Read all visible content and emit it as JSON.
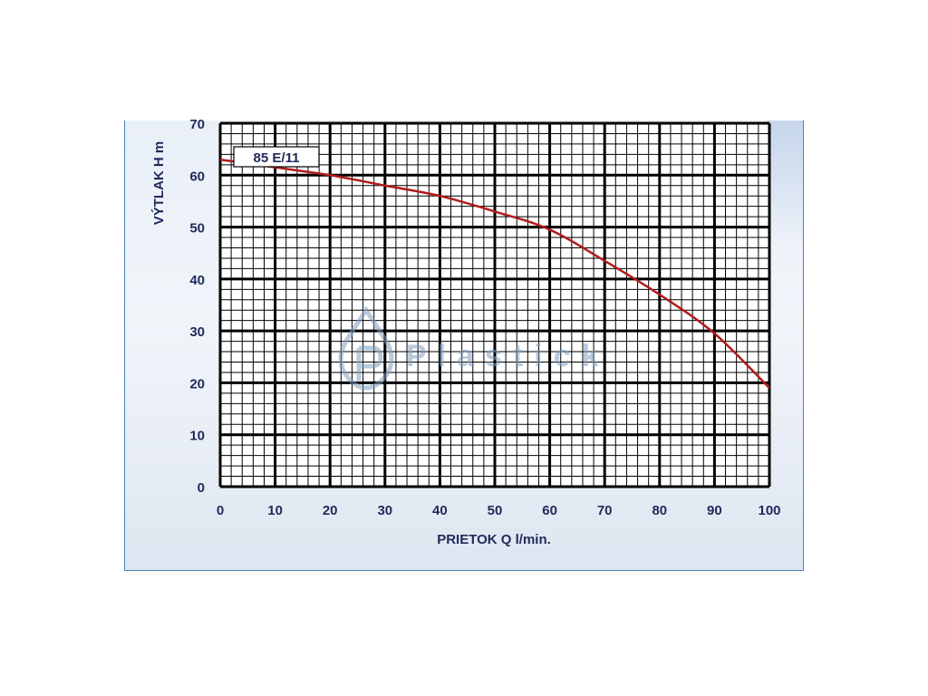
{
  "chart_data": {
    "type": "line",
    "series": [
      {
        "name": "85 E/11",
        "color": "#b01c1c",
        "x": [
          0,
          10,
          20,
          30,
          40,
          50,
          60,
          70,
          80,
          90,
          100
        ],
        "y": [
          63,
          61.5,
          60,
          58,
          56,
          53,
          49.5,
          43.5,
          37,
          29.5,
          19
        ]
      }
    ],
    "xlabel": "PRIETOK  Q  l/min.",
    "ylabel": "VÝTLAK  H  m",
    "xlim": [
      0,
      100
    ],
    "ylim": [
      0,
      70
    ],
    "xticks": [
      "0",
      "10",
      "20",
      "30",
      "40",
      "50",
      "60",
      "70",
      "80",
      "90",
      "100"
    ],
    "yticks": [
      "0",
      "10",
      "20",
      "30",
      "40",
      "50",
      "60",
      "70"
    ],
    "grid": true,
    "legend": "top-left",
    "watermark": "Plastick",
    "colors": {
      "grid": "#000000",
      "text": "#1f2a5a",
      "curve": "#b01c1c",
      "watermark": "#7f9fbf"
    }
  }
}
